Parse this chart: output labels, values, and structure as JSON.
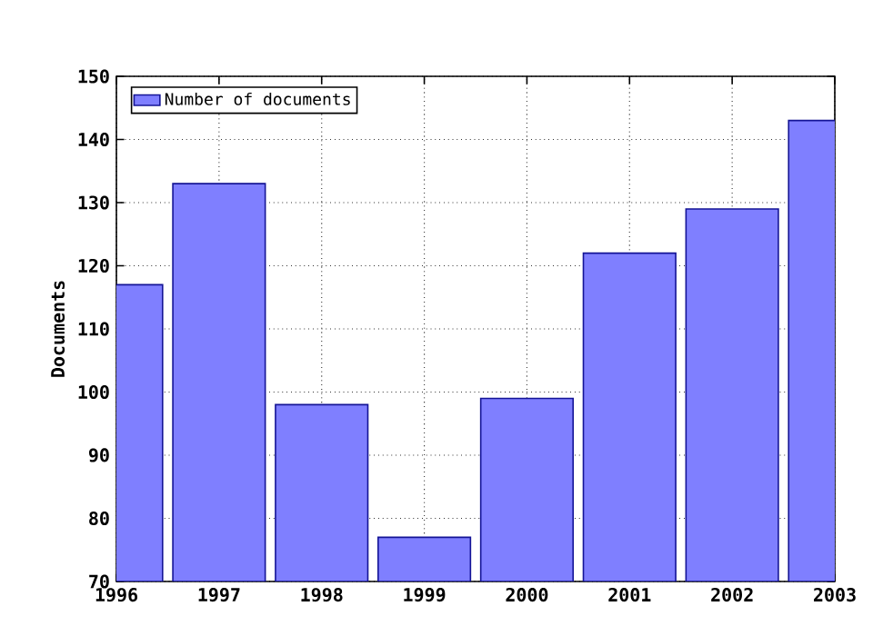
{
  "chart_data": {
    "type": "bar",
    "ylabel": "Documents",
    "x": [
      1996,
      1997,
      1998,
      1999,
      2000,
      2001,
      2002,
      2003
    ],
    "series": [
      {
        "name": "Number of documents",
        "color": "#7f7fff",
        "values": [
          117,
          133,
          98,
          77,
          99,
          122,
          129,
          143
        ]
      }
    ],
    "xlim": [
      1996,
      2003
    ],
    "xticks": [
      1996,
      1997,
      1998,
      1999,
      2000,
      2001,
      2002,
      2003
    ],
    "ylim": [
      70,
      150
    ],
    "yticks": [
      70,
      80,
      90,
      100,
      110,
      120,
      130,
      140,
      150
    ],
    "grid": true,
    "line_style": "dotted",
    "legend": "top left"
  }
}
